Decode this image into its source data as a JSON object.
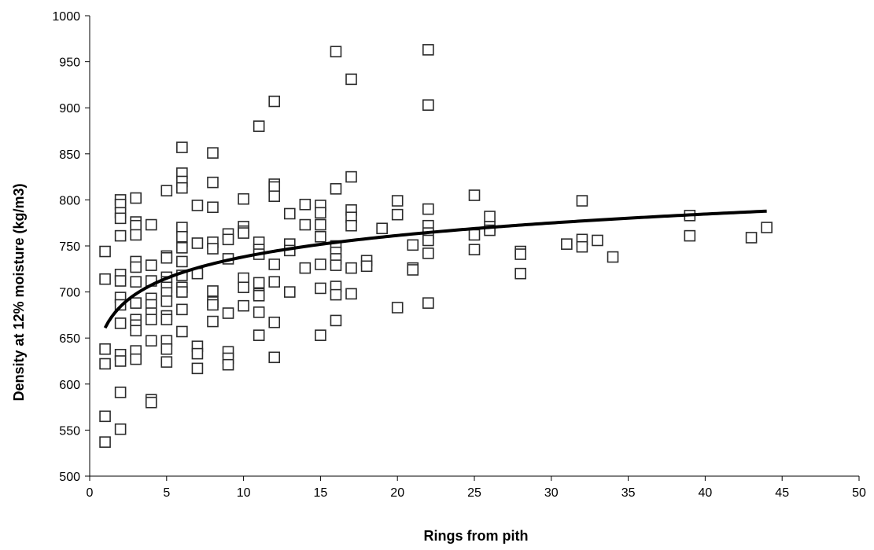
{
  "chart_data": {
    "type": "scatter",
    "xlabel": "Rings from pith",
    "ylabel": "Density at 12% moisture (kg/m3)",
    "xlim": [
      0,
      50
    ],
    "ylim": [
      500,
      1000
    ],
    "xticks": [
      "0",
      "5",
      "10",
      "15",
      "20",
      "25",
      "30",
      "35",
      "40",
      "45",
      "50"
    ],
    "yticks": [
      "500",
      "550",
      "600",
      "650",
      "700",
      "750",
      "800",
      "850",
      "900",
      "950",
      "1000"
    ],
    "grid": false,
    "legend": "none",
    "marker": "open-square",
    "points": [
      [
        1,
        744
      ],
      [
        1,
        714
      ],
      [
        1,
        638
      ],
      [
        1,
        622
      ],
      [
        1,
        565
      ],
      [
        1,
        537
      ],
      [
        2,
        800
      ],
      [
        2,
        795
      ],
      [
        2,
        786
      ],
      [
        2,
        780
      ],
      [
        2,
        761
      ],
      [
        2,
        719
      ],
      [
        2,
        712
      ],
      [
        2,
        694
      ],
      [
        2,
        686
      ],
      [
        2,
        666
      ],
      [
        2,
        632
      ],
      [
        2,
        625
      ],
      [
        2,
        591
      ],
      [
        2,
        551
      ],
      [
        3,
        802
      ],
      [
        3,
        776
      ],
      [
        3,
        772
      ],
      [
        3,
        762
      ],
      [
        3,
        733
      ],
      [
        3,
        727
      ],
      [
        3,
        711
      ],
      [
        3,
        688
      ],
      [
        3,
        670
      ],
      [
        3,
        664
      ],
      [
        3,
        658
      ],
      [
        3,
        636
      ],
      [
        3,
        627
      ],
      [
        4,
        773
      ],
      [
        4,
        729
      ],
      [
        4,
        712
      ],
      [
        4,
        693
      ],
      [
        4,
        686
      ],
      [
        4,
        677
      ],
      [
        4,
        670
      ],
      [
        4,
        647
      ],
      [
        4,
        583
      ],
      [
        4,
        580
      ],
      [
        5,
        810
      ],
      [
        5,
        739
      ],
      [
        5,
        737
      ],
      [
        5,
        716
      ],
      [
        5,
        711
      ],
      [
        5,
        705
      ],
      [
        5,
        699
      ],
      [
        5,
        690
      ],
      [
        5,
        674
      ],
      [
        5,
        670
      ],
      [
        5,
        647
      ],
      [
        5,
        638
      ],
      [
        5,
        624
      ],
      [
        6,
        857
      ],
      [
        6,
        829
      ],
      [
        6,
        820
      ],
      [
        6,
        813
      ],
      [
        6,
        770
      ],
      [
        6,
        760
      ],
      [
        6,
        748
      ],
      [
        6,
        733
      ],
      [
        6,
        718
      ],
      [
        6,
        705
      ],
      [
        6,
        700
      ],
      [
        6,
        681
      ],
      [
        6,
        657
      ],
      [
        7,
        794
      ],
      [
        7,
        753
      ],
      [
        7,
        720
      ],
      [
        7,
        641
      ],
      [
        7,
        633
      ],
      [
        7,
        617
      ],
      [
        8,
        851
      ],
      [
        8,
        819
      ],
      [
        8,
        792
      ],
      [
        8,
        754
      ],
      [
        8,
        747
      ],
      [
        8,
        701
      ],
      [
        8,
        689
      ],
      [
        8,
        686
      ],
      [
        8,
        668
      ],
      [
        9,
        763
      ],
      [
        9,
        757
      ],
      [
        9,
        736
      ],
      [
        9,
        677
      ],
      [
        9,
        635
      ],
      [
        9,
        628
      ],
      [
        9,
        621
      ],
      [
        10,
        801
      ],
      [
        10,
        771
      ],
      [
        10,
        766
      ],
      [
        10,
        764
      ],
      [
        10,
        715
      ],
      [
        10,
        705
      ],
      [
        10,
        685
      ],
      [
        11,
        880
      ],
      [
        11,
        754
      ],
      [
        11,
        746
      ],
      [
        11,
        741
      ],
      [
        11,
        710
      ],
      [
        11,
        698
      ],
      [
        11,
        696
      ],
      [
        11,
        678
      ],
      [
        11,
        653
      ],
      [
        12,
        907
      ],
      [
        12,
        817
      ],
      [
        12,
        814
      ],
      [
        12,
        804
      ],
      [
        12,
        730
      ],
      [
        12,
        711
      ],
      [
        12,
        667
      ],
      [
        12,
        629
      ],
      [
        13,
        785
      ],
      [
        13,
        752
      ],
      [
        13,
        745
      ],
      [
        13,
        700
      ],
      [
        14,
        795
      ],
      [
        14,
        773
      ],
      [
        14,
        726
      ],
      [
        15,
        794
      ],
      [
        15,
        786
      ],
      [
        15,
        773
      ],
      [
        15,
        760
      ],
      [
        15,
        730
      ],
      [
        15,
        704
      ],
      [
        15,
        653
      ],
      [
        16,
        961
      ],
      [
        16,
        812
      ],
      [
        16,
        750
      ],
      [
        16,
        743
      ],
      [
        16,
        736
      ],
      [
        16,
        729
      ],
      [
        16,
        706
      ],
      [
        16,
        697
      ],
      [
        16,
        669
      ],
      [
        17,
        931
      ],
      [
        17,
        825
      ],
      [
        17,
        789
      ],
      [
        17,
        781
      ],
      [
        17,
        772
      ],
      [
        17,
        726
      ],
      [
        17,
        698
      ],
      [
        18,
        734
      ],
      [
        18,
        728
      ],
      [
        19,
        769
      ],
      [
        20,
        799
      ],
      [
        20,
        784
      ],
      [
        20,
        683
      ],
      [
        21,
        751
      ],
      [
        21,
        726
      ],
      [
        21,
        724
      ],
      [
        22,
        963
      ],
      [
        22,
        903
      ],
      [
        22,
        790
      ],
      [
        22,
        772
      ],
      [
        22,
        764
      ],
      [
        22,
        756
      ],
      [
        22,
        742
      ],
      [
        22,
        688
      ],
      [
        25,
        805
      ],
      [
        25,
        762
      ],
      [
        25,
        746
      ],
      [
        26,
        782
      ],
      [
        26,
        771
      ],
      [
        26,
        767
      ],
      [
        28,
        744
      ],
      [
        28,
        741
      ],
      [
        28,
        720
      ],
      [
        31,
        752
      ],
      [
        32,
        799
      ],
      [
        32,
        757
      ],
      [
        32,
        749
      ],
      [
        33,
        756
      ],
      [
        34,
        738
      ],
      [
        39,
        783
      ],
      [
        39,
        761
      ],
      [
        43,
        759
      ],
      [
        44,
        770
      ]
    ],
    "trendline": {
      "type": "logarithmic",
      "equation": "y = 33.5*ln(x) + 661",
      "x_range": [
        1,
        44
      ]
    }
  }
}
